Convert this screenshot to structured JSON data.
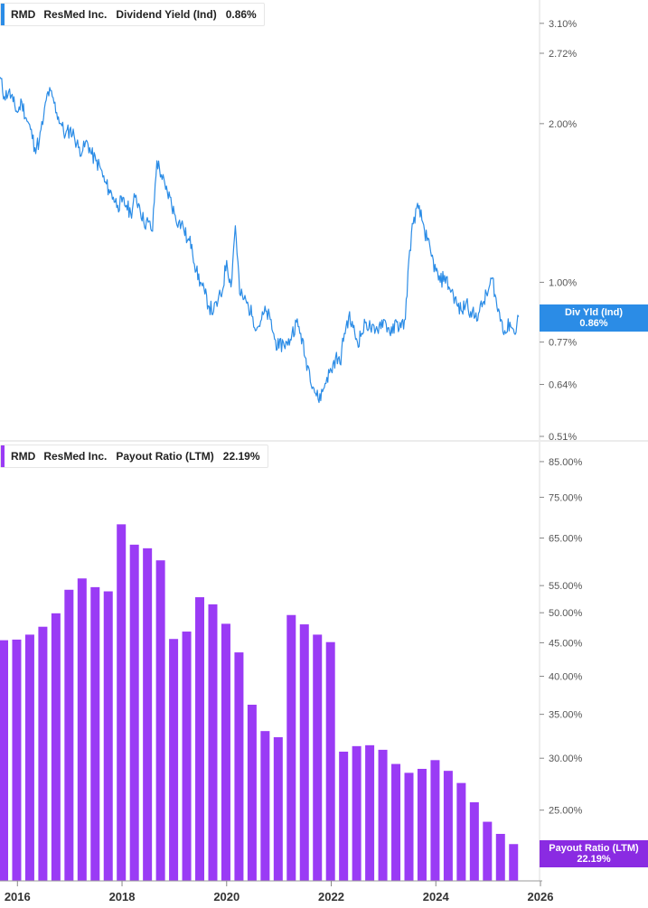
{
  "chart_data": [
    {
      "type": "line",
      "ticker": "RMD",
      "company": "ResMed Inc.",
      "metric": "Dividend Yield (Ind)",
      "current_value": "0.86%",
      "badge_label": "Div Yld (Ind)",
      "badge_value": "0.86%",
      "color": "#2b8ce6",
      "badge_color": "#2b8ce6",
      "y_scale": "log",
      "y_ticks": [
        "3.10%",
        "2.72%",
        "2.00%",
        "1.00%",
        "0.77%",
        "0.64%",
        "0.51%"
      ],
      "ylim": [
        0.51,
        3.3
      ],
      "x": [
        "2015-09",
        "2015-10",
        "2015-11",
        "2015-12",
        "2016-01",
        "2016-02",
        "2016-03",
        "2016-04",
        "2016-05",
        "2016-06",
        "2016-07",
        "2016-08",
        "2016-09",
        "2016-10",
        "2016-11",
        "2016-12",
        "2017-01",
        "2017-02",
        "2017-03",
        "2017-04",
        "2017-05",
        "2017-06",
        "2017-07",
        "2017-08",
        "2017-09",
        "2017-10",
        "2017-11",
        "2017-12",
        "2018-01",
        "2018-02",
        "2018-03",
        "2018-04",
        "2018-05",
        "2018-06",
        "2018-07",
        "2018-08",
        "2018-09",
        "2018-10",
        "2018-11",
        "2018-12",
        "2019-01",
        "2019-02",
        "2019-03",
        "2019-04",
        "2019-05",
        "2019-06",
        "2019-07",
        "2019-08",
        "2019-09",
        "2019-10",
        "2019-11",
        "2019-12",
        "2020-01",
        "2020-02",
        "2020-03",
        "2020-04",
        "2020-05",
        "2020-06",
        "2020-07",
        "2020-08",
        "2020-09",
        "2020-10",
        "2020-11",
        "2020-12",
        "2021-01",
        "2021-02",
        "2021-03",
        "2021-04",
        "2021-05",
        "2021-06",
        "2021-07",
        "2021-08",
        "2021-09",
        "2021-10",
        "2021-11",
        "2021-12",
        "2022-01",
        "2022-02",
        "2022-03",
        "2022-04",
        "2022-05",
        "2022-06",
        "2022-07",
        "2022-08",
        "2022-09",
        "2022-10",
        "2022-11",
        "2022-12",
        "2023-01",
        "2023-02",
        "2023-03",
        "2023-04",
        "2023-05",
        "2023-06",
        "2023-07",
        "2023-08",
        "2023-09",
        "2023-10",
        "2023-11",
        "2023-12",
        "2024-01",
        "2024-02",
        "2024-03",
        "2024-04",
        "2024-05",
        "2024-06",
        "2024-07",
        "2024-08",
        "2024-09",
        "2024-10",
        "2024-11",
        "2024-12",
        "2025-01",
        "2025-02",
        "2025-03",
        "2025-04",
        "2025-05",
        "2025-06",
        "2025-07",
        "2025-08"
      ],
      "y": [
        2.45,
        2.25,
        2.3,
        2.2,
        2.1,
        2.2,
        2.05,
        1.95,
        1.8,
        1.85,
        2.05,
        2.3,
        2.25,
        2.1,
        2.0,
        1.9,
        1.95,
        1.9,
        1.8,
        1.78,
        1.85,
        1.75,
        1.7,
        1.65,
        1.55,
        1.5,
        1.45,
        1.4,
        1.42,
        1.4,
        1.35,
        1.45,
        1.4,
        1.3,
        1.3,
        1.25,
        1.7,
        1.6,
        1.5,
        1.45,
        1.35,
        1.3,
        1.28,
        1.2,
        1.18,
        1.05,
        1.0,
        0.95,
        0.9,
        0.88,
        0.92,
        0.96,
        1.1,
        0.98,
        1.28,
        0.95,
        0.93,
        0.9,
        0.86,
        0.82,
        0.85,
        0.88,
        0.85,
        0.78,
        0.75,
        0.77,
        0.76,
        0.8,
        0.84,
        0.8,
        0.72,
        0.68,
        0.63,
        0.6,
        0.62,
        0.66,
        0.68,
        0.72,
        0.7,
        0.8,
        0.86,
        0.82,
        0.77,
        0.8,
        0.84,
        0.82,
        0.8,
        0.83,
        0.85,
        0.82,
        0.8,
        0.84,
        0.82,
        0.85,
        1.15,
        1.33,
        1.38,
        1.3,
        1.2,
        1.12,
        1.05,
        1.0,
        1.03,
        0.98,
        0.95,
        0.9,
        0.88,
        0.92,
        0.88,
        0.86,
        0.88,
        0.92,
        0.96,
        1.02,
        0.9,
        0.85,
        0.8,
        0.84,
        0.8,
        0.86
      ]
    },
    {
      "type": "bar",
      "ticker": "RMD",
      "company": "ResMed Inc.",
      "metric": "Payout Ratio (LTM)",
      "current_value": "22.19%",
      "badge_label": "Payout Ratio (LTM)",
      "badge_value": "22.19%",
      "color": "#9a3bf5",
      "badge_color": "#8a2be2",
      "y_scale": "log",
      "y_ticks": [
        "85.00%",
        "75.00%",
        "65.00%",
        "55.00%",
        "50.00%",
        "45.00%",
        "40.00%",
        "35.00%",
        "30.00%",
        "25.00%"
      ],
      "ylim": [
        19.5,
        88
      ],
      "x": [
        "2015-09",
        "2015-12",
        "2016-03",
        "2016-06",
        "2016-09",
        "2016-12",
        "2017-03",
        "2017-06",
        "2017-09",
        "2017-12",
        "2018-03",
        "2018-06",
        "2018-09",
        "2018-12",
        "2019-03",
        "2019-06",
        "2019-09",
        "2019-12",
        "2020-03",
        "2020-06",
        "2020-09",
        "2020-12",
        "2021-03",
        "2021-06",
        "2021-09",
        "2021-12",
        "2022-03",
        "2022-06",
        "2022-09",
        "2022-12",
        "2023-03",
        "2023-06",
        "2023-09",
        "2023-12",
        "2024-03",
        "2024-06",
        "2024-09",
        "2024-12",
        "2025-03",
        "2025-06"
      ],
      "values": [
        45.4,
        45.5,
        46.3,
        47.6,
        49.9,
        54.2,
        56.4,
        54.7,
        53.9,
        68.2,
        63.5,
        62.7,
        60.1,
        45.6,
        46.8,
        52.8,
        51.5,
        48.1,
        43.5,
        36.2,
        33.0,
        32.3,
        49.6,
        48.0,
        46.3,
        45.1,
        30.7,
        31.3,
        31.4,
        30.9,
        29.4,
        28.5,
        28.9,
        29.8,
        28.7,
        27.5,
        25.7,
        24.0,
        23.0,
        22.19
      ]
    }
  ],
  "x_axis": {
    "ticks": [
      "2016",
      "2018",
      "2020",
      "2022",
      "2024",
      "2026"
    ],
    "range": [
      "2015-09",
      "2026-01"
    ]
  }
}
